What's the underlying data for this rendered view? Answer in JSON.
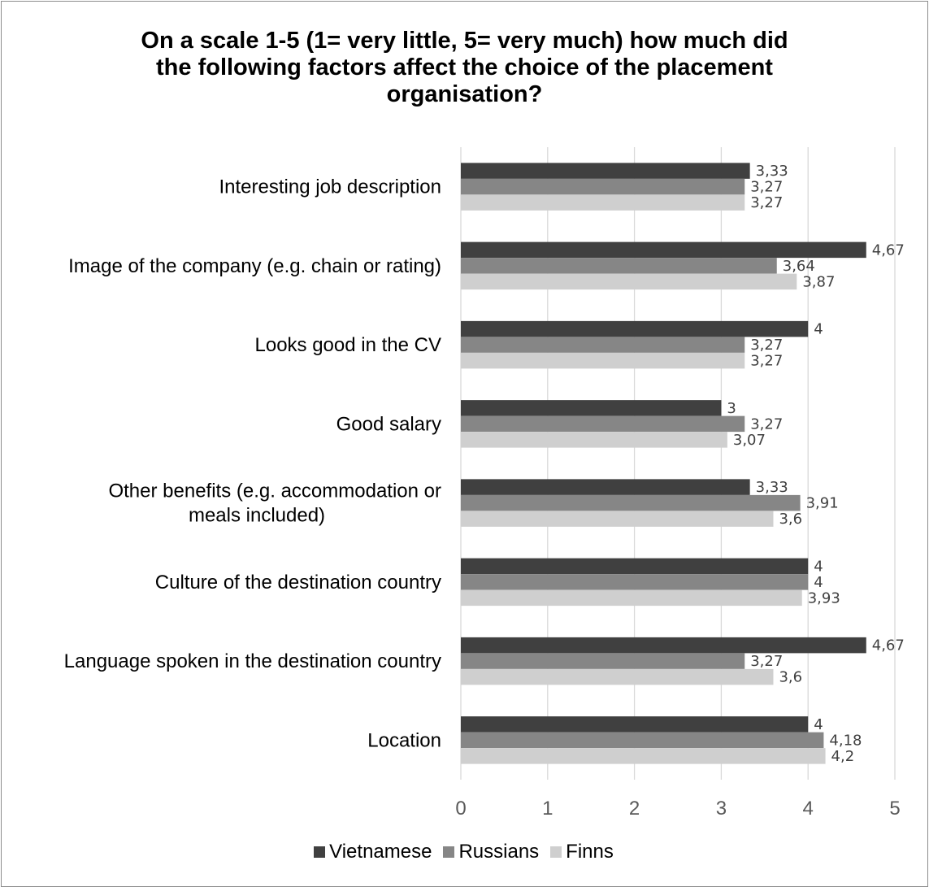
{
  "chart_data": {
    "type": "bar",
    "orientation": "horizontal",
    "title": "On a scale 1-5 (1= very little, 5= very much) how much did the following factors affect the choice of the placement organisation?",
    "title_lines": [
      "On a scale 1-5 (1= very little, 5= very much) how much did",
      "the following factors affect the choice of the placement",
      "organisation?"
    ],
    "categories": [
      "Interesting job description",
      "Image of the company (e.g. chain or rating)",
      "Looks good in the CV",
      "Good salary",
      "Other benefits (e.g. accommodation or meals included)",
      "Culture of the destination country",
      "Language spoken in the destination country",
      "Location"
    ],
    "category_lines": [
      [
        "Interesting job description"
      ],
      [
        "Image of the company (e.g. chain or rating)"
      ],
      [
        "Looks good in the CV"
      ],
      [
        "Good salary"
      ],
      [
        "Other benefits (e.g. accommodation or",
        "meals included)"
      ],
      [
        "Culture of the destination country"
      ],
      [
        "Language spoken in the destination country"
      ],
      [
        "Location"
      ]
    ],
    "series": [
      {
        "name": "Vietnamese",
        "color": "#404040",
        "values": [
          3.33,
          4.67,
          4,
          3,
          3.33,
          4,
          4.67,
          4
        ],
        "labels": [
          "3,33",
          "4,67",
          "4",
          "3",
          "3,33",
          "4",
          "4,67",
          "4"
        ]
      },
      {
        "name": "Russians",
        "color": "#868686",
        "values": [
          3.27,
          3.64,
          3.27,
          3.27,
          3.91,
          4,
          3.27,
          4.18
        ],
        "labels": [
          "3,27",
          "3,64",
          "3,27",
          "3,27",
          "3,91",
          "4",
          "3,27",
          "4,18"
        ]
      },
      {
        "name": "Finns",
        "color": "#cfcfcf",
        "values": [
          3.27,
          3.87,
          3.27,
          3.07,
          3.6,
          3.93,
          3.6,
          4.2
        ],
        "labels": [
          "3,27",
          "3,87",
          "3,27",
          "3,07",
          "3,6",
          "3,93",
          "3,6",
          "4,2"
        ]
      }
    ],
    "xlim": [
      0,
      5
    ],
    "xticks": [
      "0",
      "1",
      "2",
      "3",
      "4",
      "5"
    ],
    "grid": true,
    "legend_position": "bottom",
    "xlabel": "",
    "ylabel": ""
  }
}
